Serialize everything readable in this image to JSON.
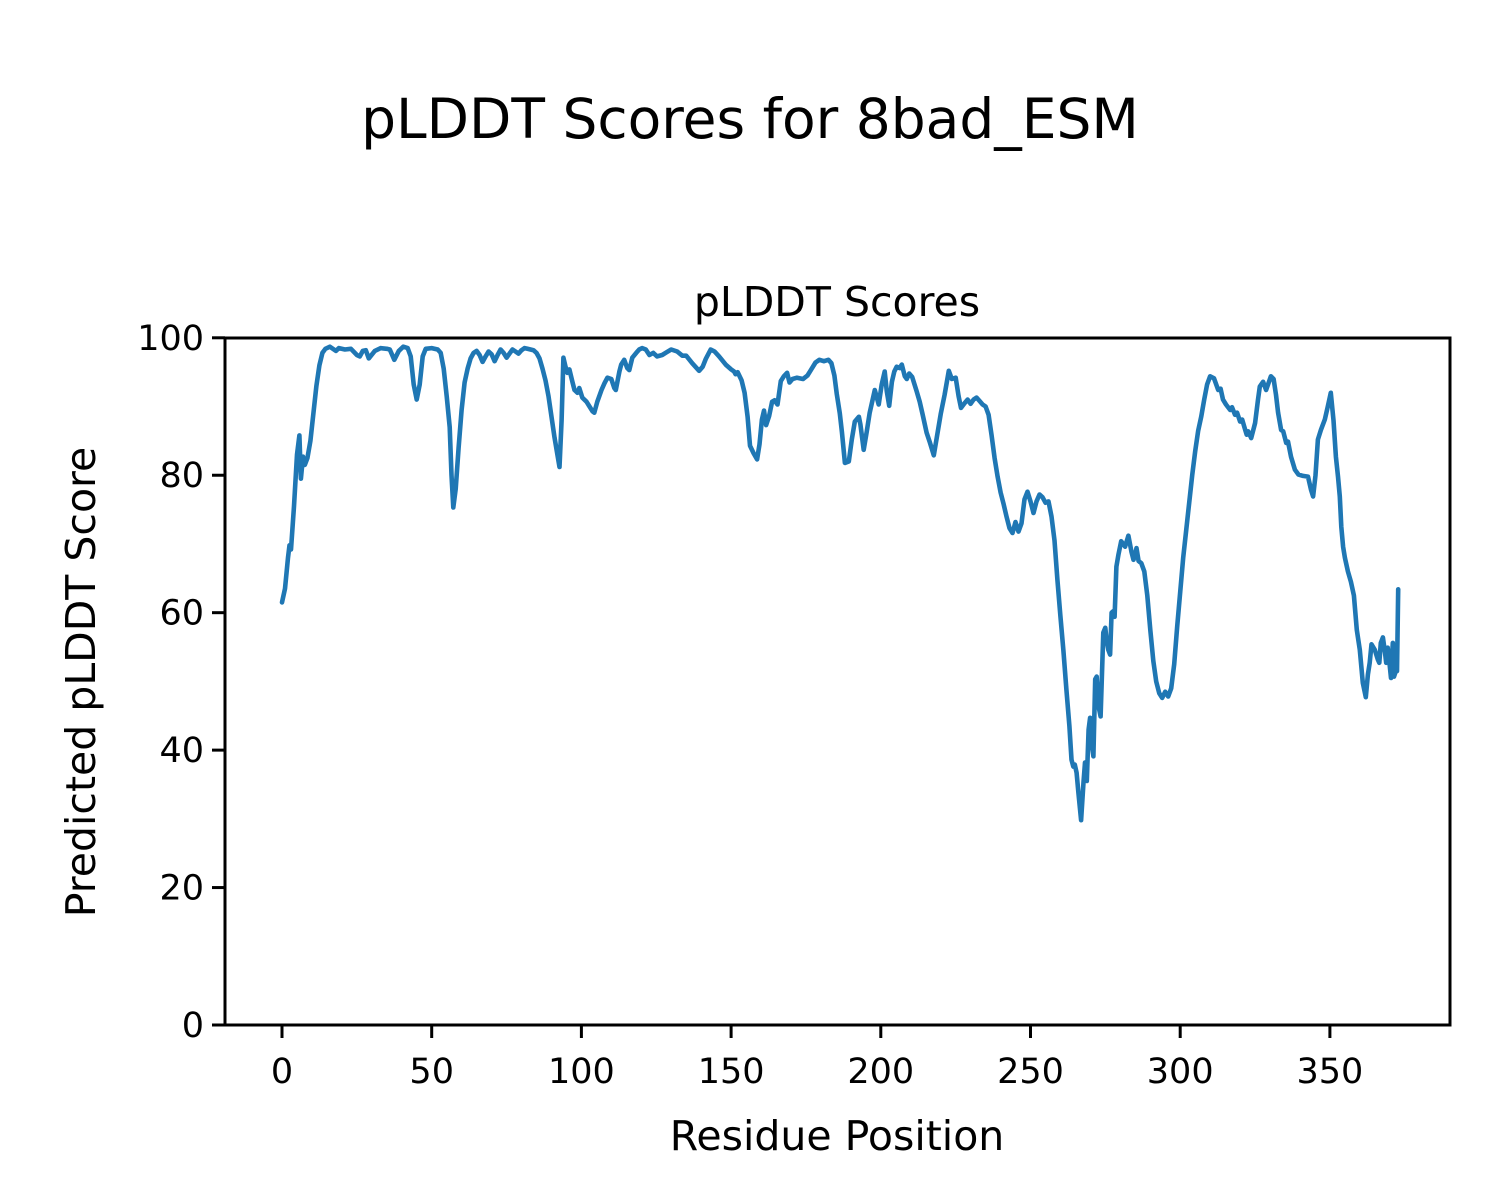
{
  "figure": {
    "suptitle": "pLDDT Scores for 8bad_ESM"
  },
  "chart_data": {
    "type": "line",
    "title": "pLDDT Scores",
    "xlabel": "Residue Position",
    "ylabel": "Predicted pLDDT Score",
    "x_ticks": [
      0,
      50,
      100,
      150,
      200,
      250,
      300,
      350
    ],
    "y_ticks": [
      0,
      20,
      40,
      60,
      80,
      100
    ],
    "xlim": [
      -19,
      390
    ],
    "ylim": [
      0,
      100
    ],
    "grid": false,
    "legend": "none",
    "line_color": "#1f77b4",
    "background_color": "#ffffff",
    "series_name": "pLDDT",
    "points": [
      [
        0,
        61.5
      ],
      [
        1,
        63.5
      ],
      [
        2,
        68
      ],
      [
        2.5,
        69.8
      ],
      [
        3,
        69.2
      ],
      [
        4,
        75.5
      ],
      [
        5,
        83
      ],
      [
        5.8,
        85.8
      ],
      [
        6.3,
        79.5
      ],
      [
        7,
        82.7
      ],
      [
        7.6,
        81.5
      ],
      [
        8.5,
        82.5
      ],
      [
        9.5,
        85
      ],
      [
        10.5,
        89
      ],
      [
        11.5,
        93
      ],
      [
        12.5,
        96
      ],
      [
        13.5,
        97.8
      ],
      [
        14.5,
        98.4
      ],
      [
        16,
        98.7
      ],
      [
        18,
        98.1
      ],
      [
        19,
        98.5
      ],
      [
        21,
        98.3
      ],
      [
        23,
        98.4
      ],
      [
        25,
        97.5
      ],
      [
        26,
        97.3
      ],
      [
        27,
        98.1
      ],
      [
        28,
        98.2
      ],
      [
        29,
        97
      ],
      [
        31,
        98.1
      ],
      [
        33,
        98.5
      ],
      [
        35,
        98.4
      ],
      [
        36,
        98.3
      ],
      [
        37.5,
        96.8
      ],
      [
        39,
        98.1
      ],
      [
        40.5,
        98.7
      ],
      [
        42,
        98.5
      ],
      [
        43,
        97.3
      ],
      [
        44,
        93.2
      ],
      [
        45,
        91
      ],
      [
        46,
        93.2
      ],
      [
        47,
        97.3
      ],
      [
        48,
        98.4
      ],
      [
        50,
        98.5
      ],
      [
        52,
        98.3
      ],
      [
        53,
        97.8
      ],
      [
        54,
        95.5
      ],
      [
        55,
        91.5
      ],
      [
        56,
        87
      ],
      [
        56.6,
        80
      ],
      [
        57.2,
        75.3
      ],
      [
        58,
        78
      ],
      [
        59,
        84
      ],
      [
        60,
        89.5
      ],
      [
        61,
        93.5
      ],
      [
        62,
        95.5
      ],
      [
        63,
        97
      ],
      [
        64,
        97.8
      ],
      [
        65,
        98.1
      ],
      [
        66,
        97.5
      ],
      [
        67,
        96.5
      ],
      [
        68,
        97.3
      ],
      [
        69,
        98
      ],
      [
        70,
        97.6
      ],
      [
        71,
        96.6
      ],
      [
        72,
        97.5
      ],
      [
        73,
        98.3
      ],
      [
        74,
        97.8
      ],
      [
        75,
        97.1
      ],
      [
        76,
        97.7
      ],
      [
        77,
        98.3
      ],
      [
        78,
        98
      ],
      [
        79,
        97.7
      ],
      [
        80,
        98.2
      ],
      [
        81,
        98.5
      ],
      [
        82,
        98.4
      ],
      [
        83,
        98.3
      ],
      [
        84,
        98.2
      ],
      [
        85,
        97.8
      ],
      [
        86,
        97
      ],
      [
        87,
        95.5
      ],
      [
        88,
        93.8
      ],
      [
        89,
        91.5
      ],
      [
        90,
        88.5
      ],
      [
        91,
        85.5
      ],
      [
        92,
        83
      ],
      [
        92.7,
        81.2
      ],
      [
        93.4,
        88
      ],
      [
        94,
        97.1
      ],
      [
        94.7,
        95.8
      ],
      [
        95.3,
        94.9
      ],
      [
        96,
        95.4
      ],
      [
        97,
        93.6
      ],
      [
        97.7,
        92.4
      ],
      [
        98.7,
        92
      ],
      [
        99.3,
        92.7
      ],
      [
        100.3,
        91.3
      ],
      [
        101.7,
        90.7
      ],
      [
        102.7,
        90
      ],
      [
        103.7,
        89.3
      ],
      [
        104.3,
        89.1
      ],
      [
        105.3,
        90.7
      ],
      [
        106.7,
        92.4
      ],
      [
        107.7,
        93.4
      ],
      [
        108.7,
        94.2
      ],
      [
        110,
        94
      ],
      [
        111,
        92.7
      ],
      [
        111.5,
        92.4
      ],
      [
        112.7,
        95.1
      ],
      [
        113.3,
        96.1
      ],
      [
        114.3,
        96.8
      ],
      [
        115.3,
        95.6
      ],
      [
        116,
        95.3
      ],
      [
        117,
        97.1
      ],
      [
        118.3,
        97.8
      ],
      [
        119.3,
        98.3
      ],
      [
        120.3,
        98.5
      ],
      [
        121.5,
        98.3
      ],
      [
        122.7,
        97.5
      ],
      [
        124,
        97.8
      ],
      [
        125.3,
        97.3
      ],
      [
        127,
        97.5
      ],
      [
        128.5,
        97.9
      ],
      [
        130,
        98.3
      ],
      [
        132,
        98
      ],
      [
        133.7,
        97.4
      ],
      [
        135,
        97.4
      ],
      [
        137,
        96.3
      ],
      [
        139.3,
        95.2
      ],
      [
        140.5,
        95.8
      ],
      [
        141.5,
        96.9
      ],
      [
        143.2,
        98.3
      ],
      [
        144.5,
        98
      ],
      [
        146,
        97.3
      ],
      [
        148.2,
        96.1
      ],
      [
        150,
        95.4
      ],
      [
        151,
        95.1
      ],
      [
        151.5,
        94.7
      ],
      [
        152.2,
        95
      ],
      [
        153.5,
        93.8
      ],
      [
        154.5,
        92
      ],
      [
        155.5,
        88.5
      ],
      [
        156.3,
        84.3
      ],
      [
        157.5,
        83.2
      ],
      [
        158.7,
        82.3
      ],
      [
        159.5,
        84.5
      ],
      [
        160.3,
        88.1
      ],
      [
        161,
        89.4
      ],
      [
        161.7,
        87.3
      ],
      [
        162.7,
        88.6
      ],
      [
        163.7,
        90.7
      ],
      [
        164.5,
        90.9
      ],
      [
        165.5,
        90.3
      ],
      [
        166.6,
        93.7
      ],
      [
        167.6,
        94.4
      ],
      [
        168.7,
        94.9
      ],
      [
        169.5,
        93.5
      ],
      [
        170.5,
        94
      ],
      [
        172,
        94.2
      ],
      [
        174,
        94
      ],
      [
        175.5,
        94.5
      ],
      [
        176.5,
        95.2
      ],
      [
        178.2,
        96.4
      ],
      [
        179.5,
        96.8
      ],
      [
        181,
        96.6
      ],
      [
        182.5,
        96.8
      ],
      [
        183.5,
        96.3
      ],
      [
        184.5,
        94.5
      ],
      [
        185.3,
        91.8
      ],
      [
        186.3,
        89
      ],
      [
        187,
        86.3
      ],
      [
        188,
        81.8
      ],
      [
        189.3,
        82
      ],
      [
        190.3,
        85.2
      ],
      [
        191.3,
        87.8
      ],
      [
        192.7,
        88.5
      ],
      [
        193.2,
        87.4
      ],
      [
        194.3,
        83.7
      ],
      [
        195.3,
        86.3
      ],
      [
        196.3,
        89.1
      ],
      [
        198,
        92.4
      ],
      [
        199.3,
        90.3
      ],
      [
        200.3,
        93.2
      ],
      [
        201.3,
        95.1
      ],
      [
        202,
        92.2
      ],
      [
        202.8,
        90.1
      ],
      [
        203.7,
        93.6
      ],
      [
        204.5,
        95.1
      ],
      [
        205.3,
        95.8
      ],
      [
        206.3,
        95.6
      ],
      [
        207,
        96.1
      ],
      [
        208,
        94.4
      ],
      [
        208.7,
        94
      ],
      [
        209.5,
        94.8
      ],
      [
        210.5,
        94.3
      ],
      [
        211,
        93.6
      ],
      [
        212,
        92.2
      ],
      [
        213,
        90.7
      ],
      [
        214,
        88.8
      ],
      [
        215.3,
        86.2
      ],
      [
        216.3,
        84.9
      ],
      [
        217.7,
        82.9
      ],
      [
        218.7,
        85.5
      ],
      [
        220,
        88.9
      ],
      [
        221.3,
        91.7
      ],
      [
        222.7,
        95.2
      ],
      [
        223.7,
        94
      ],
      [
        225,
        94.2
      ],
      [
        226,
        91.5
      ],
      [
        226.8,
        89.8
      ],
      [
        228,
        90.5
      ],
      [
        229,
        91
      ],
      [
        230,
        90.4
      ],
      [
        231,
        91
      ],
      [
        232,
        91.3
      ],
      [
        233,
        90.8
      ],
      [
        234,
        90.3
      ],
      [
        235,
        90
      ],
      [
        236,
        88.8
      ],
      [
        237,
        85.8
      ],
      [
        238,
        82.5
      ],
      [
        239,
        79.8
      ],
      [
        240,
        77.5
      ],
      [
        241,
        75.8
      ],
      [
        242,
        74
      ],
      [
        243,
        72.3
      ],
      [
        244,
        71.6
      ],
      [
        245,
        73.2
      ],
      [
        246,
        71.8
      ],
      [
        247,
        73
      ],
      [
        248,
        76.5
      ],
      [
        249,
        77.6
      ],
      [
        250,
        76.2
      ],
      [
        251,
        74.5
      ],
      [
        252,
        76.2
      ],
      [
        253,
        77.2
      ],
      [
        254,
        76.8
      ],
      [
        255,
        76
      ],
      [
        256,
        76.2
      ],
      [
        257,
        74
      ],
      [
        258,
        70.5
      ],
      [
        259,
        64.8
      ],
      [
        260,
        59.5
      ],
      [
        261,
        54.5
      ],
      [
        262,
        48.8
      ],
      [
        263,
        43.5
      ],
      [
        263.7,
        38.6
      ],
      [
        264.3,
        37.6
      ],
      [
        264.8,
        37.9
      ],
      [
        265.4,
        36.7
      ],
      [
        266,
        33.8
      ],
      [
        266.9,
        29.8
      ],
      [
        267.7,
        35.3
      ],
      [
        268.2,
        38.2
      ],
      [
        268.8,
        35.5
      ],
      [
        269.4,
        43
      ],
      [
        269.9,
        44.7
      ],
      [
        270.4,
        41.1
      ],
      [
        271,
        39.1
      ],
      [
        271.6,
        50.3
      ],
      [
        272.1,
        50.7
      ],
      [
        272.7,
        46.4
      ],
      [
        273.4,
        44.9
      ],
      [
        274.3,
        57.1
      ],
      [
        275,
        57.8
      ],
      [
        275.4,
        56.1
      ],
      [
        276,
        54.6
      ],
      [
        276.6,
        53.9
      ],
      [
        277.1,
        60
      ],
      [
        277.6,
        60.2
      ],
      [
        278.1,
        59.4
      ],
      [
        278.7,
        66.7
      ],
      [
        279.4,
        68.5
      ],
      [
        280.3,
        70.4
      ],
      [
        281.6,
        69.6
      ],
      [
        282.7,
        71.2
      ],
      [
        283.7,
        68.9
      ],
      [
        284.4,
        67.7
      ],
      [
        285,
        68.6
      ],
      [
        285.4,
        69.4
      ],
      [
        286.1,
        67.5
      ],
      [
        287,
        67.2
      ],
      [
        288,
        66
      ],
      [
        289,
        62.5
      ],
      [
        290,
        57.5
      ],
      [
        291,
        53
      ],
      [
        292,
        50
      ],
      [
        293,
        48.3
      ],
      [
        294,
        47.6
      ],
      [
        295,
        48.5
      ],
      [
        296,
        47.8
      ],
      [
        297,
        49
      ],
      [
        298,
        52.5
      ],
      [
        299,
        58
      ],
      [
        300,
        63
      ],
      [
        301,
        68
      ],
      [
        302,
        72
      ],
      [
        303,
        76
      ],
      [
        304,
        80
      ],
      [
        305,
        83.5
      ],
      [
        306,
        86.5
      ],
      [
        307,
        88.5
      ],
      [
        308,
        91
      ],
      [
        309,
        93.2
      ],
      [
        310,
        94.4
      ],
      [
        311.3,
        94.1
      ],
      [
        312.7,
        92.4
      ],
      [
        313.5,
        92.6
      ],
      [
        314.3,
        91
      ],
      [
        315.3,
        90.3
      ],
      [
        316.7,
        89.5
      ],
      [
        317.3,
        89.9
      ],
      [
        318.3,
        88.8
      ],
      [
        319,
        89.1
      ],
      [
        320,
        87.8
      ],
      [
        320.7,
        88.1
      ],
      [
        321.7,
        86.6
      ],
      [
        322.2,
        85.9
      ],
      [
        322.7,
        86.4
      ],
      [
        323.7,
        85.4
      ],
      [
        325,
        87.6
      ],
      [
        326,
        91
      ],
      [
        326.6,
        92.9
      ],
      [
        327.7,
        93.6
      ],
      [
        328.7,
        92.4
      ],
      [
        330.3,
        94.4
      ],
      [
        331.2,
        94
      ],
      [
        332,
        91.7
      ],
      [
        332.7,
        89.1
      ],
      [
        333.7,
        86.6
      ],
      [
        334.4,
        86.4
      ],
      [
        335.4,
        84.7
      ],
      [
        336,
        84.9
      ],
      [
        337,
        82.7
      ],
      [
        338.3,
        80.8
      ],
      [
        339.5,
        80.1
      ],
      [
        341,
        79.9
      ],
      [
        342.7,
        79.8
      ],
      [
        343.7,
        77.9
      ],
      [
        344.4,
        76.9
      ],
      [
        345.2,
        80
      ],
      [
        346,
        85.2
      ],
      [
        347,
        86.6
      ],
      [
        348.3,
        88.1
      ],
      [
        349.3,
        90
      ],
      [
        350.3,
        92
      ],
      [
        351.2,
        88
      ],
      [
        352,
        82.7
      ],
      [
        352.7,
        79.8
      ],
      [
        353.3,
        76.9
      ],
      [
        353.8,
        72.5
      ],
      [
        354.4,
        69.6
      ],
      [
        355,
        68
      ],
      [
        356,
        66
      ],
      [
        357,
        64.5
      ],
      [
        358,
        62.5
      ],
      [
        359,
        57.5
      ],
      [
        360,
        54.6
      ],
      [
        361,
        49.8
      ],
      [
        362,
        47.7
      ],
      [
        362.7,
        51
      ],
      [
        363.3,
        52.7
      ],
      [
        363.9,
        55.4
      ],
      [
        365,
        54.6
      ],
      [
        366,
        53.2
      ],
      [
        366.5,
        52.7
      ],
      [
        367,
        55.6
      ],
      [
        367.7,
        56.4
      ],
      [
        368.4,
        54.2
      ],
      [
        368.8,
        52.7
      ],
      [
        369.3,
        54.9
      ],
      [
        370,
        52.2
      ],
      [
        370.4,
        50.5
      ],
      [
        371,
        55.6
      ],
      [
        371.4,
        50.7
      ],
      [
        372,
        51.5
      ],
      [
        372.4,
        51.5
      ],
      [
        372.8,
        63.4
      ]
    ]
  }
}
